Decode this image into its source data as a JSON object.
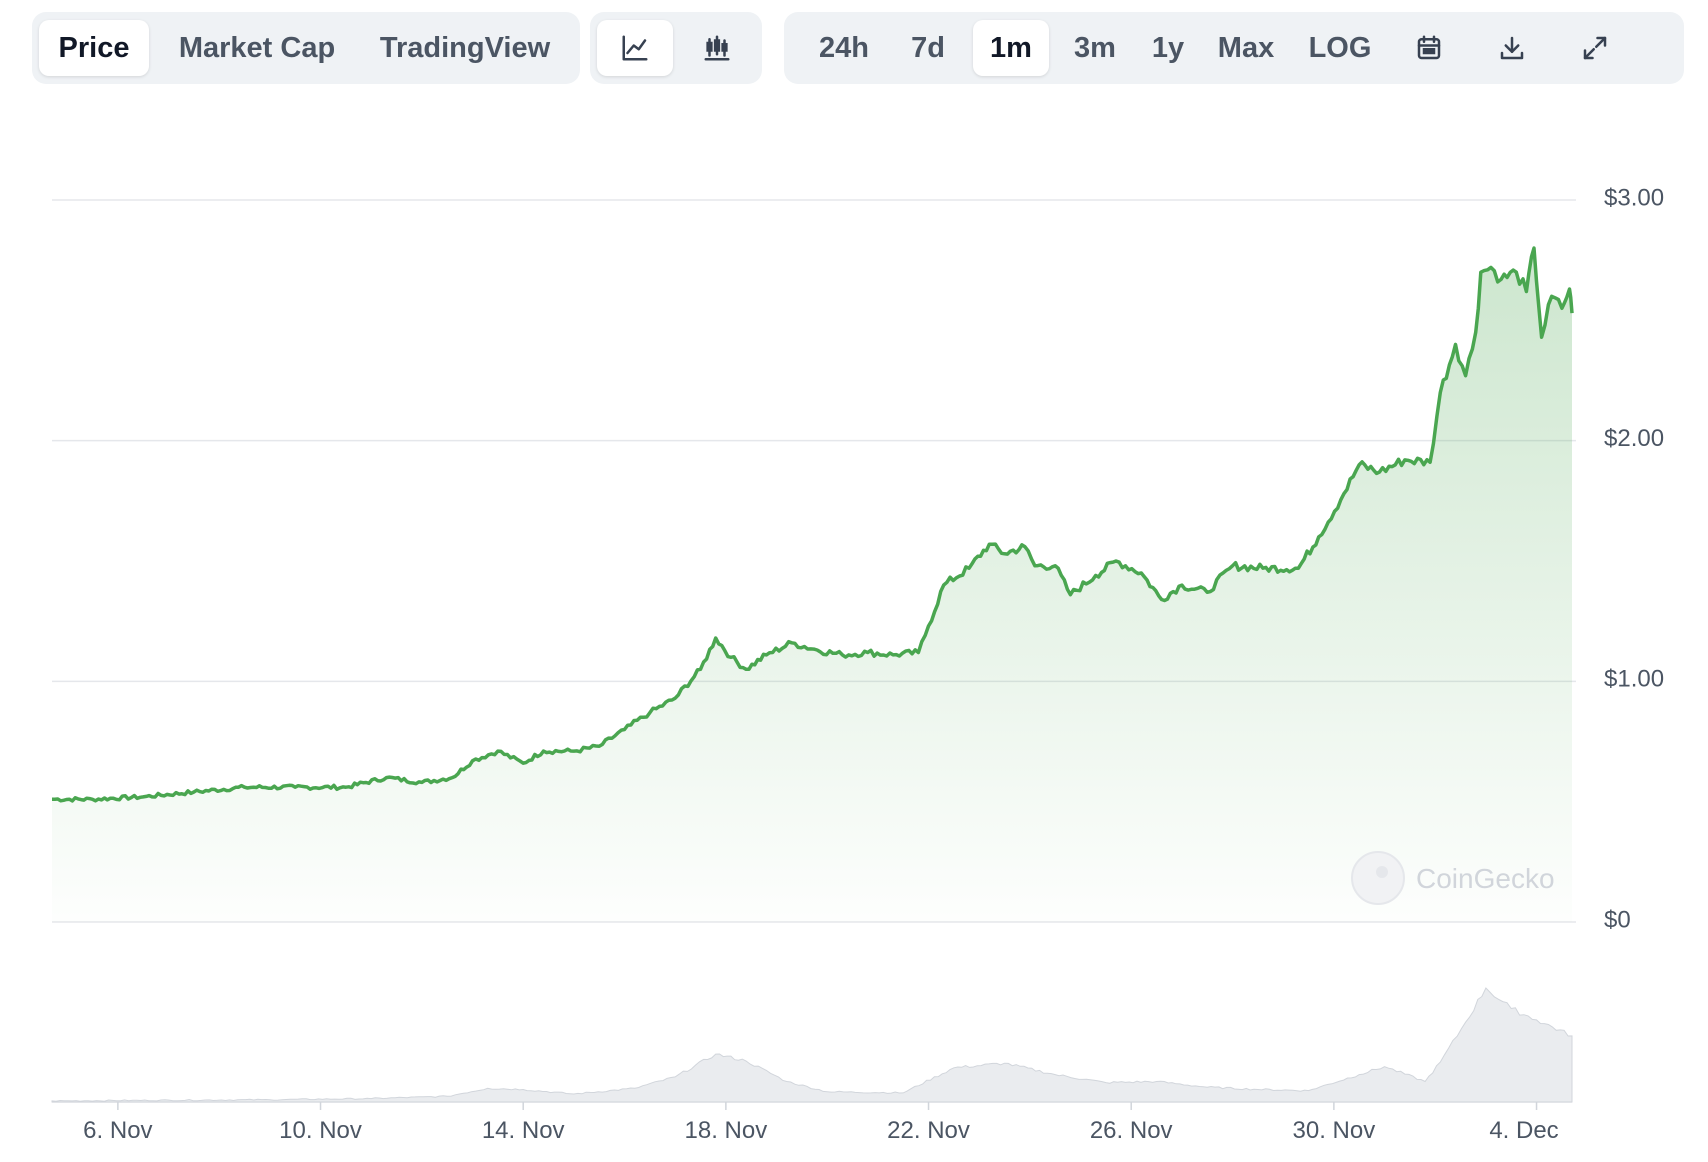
{
  "tabs": [
    {
      "label": "Price",
      "active": true
    },
    {
      "label": "Market Cap",
      "active": false
    },
    {
      "label": "TradingView",
      "active": false
    }
  ],
  "chart_types": [
    {
      "icon": "line-chart-icon",
      "active": true
    },
    {
      "icon": "candlestick-chart-icon",
      "active": false
    }
  ],
  "ranges": [
    {
      "label": "24h",
      "active": false
    },
    {
      "label": "7d",
      "active": false
    },
    {
      "label": "1m",
      "active": true
    },
    {
      "label": "3m",
      "active": false
    },
    {
      "label": "1y",
      "active": false
    },
    {
      "label": "Max",
      "active": false
    },
    {
      "label": "LOG",
      "active": false
    }
  ],
  "actions": [
    {
      "icon": "calendar-icon"
    },
    {
      "icon": "download-icon"
    },
    {
      "icon": "expand-icon"
    }
  ],
  "watermark": "CoinGecko",
  "colors": {
    "line": "#4aa650",
    "fill": "#4aa650",
    "volume": "#e5e7eb",
    "grid": "#e5e7eb"
  },
  "chart_data": {
    "type": "area",
    "y_ticks": [
      "$3.00",
      "$2.00",
      "$1.00",
      "$0"
    ],
    "y_tick_values": [
      3,
      2,
      1,
      0
    ],
    "x_ticks": [
      "6. Nov",
      "10. Nov",
      "14. Nov",
      "18. Nov",
      "22. Nov",
      "26. Nov",
      "30. Nov",
      "4. Dec"
    ],
    "x_tick_days": [
      6,
      10,
      14,
      18,
      22,
      26,
      30,
      34
    ],
    "x_range_days": [
      4.7,
      34.7
    ],
    "ylim": [
      0,
      3
    ],
    "price": [
      [
        4.7,
        0.51
      ],
      [
        5.5,
        0.51
      ],
      [
        6.5,
        0.52
      ],
      [
        7.5,
        0.54
      ],
      [
        8.5,
        0.56
      ],
      [
        9.5,
        0.56
      ],
      [
        10.5,
        0.56
      ],
      [
        11.3,
        0.6
      ],
      [
        12.0,
        0.58
      ],
      [
        12.6,
        0.6
      ],
      [
        13.0,
        0.67
      ],
      [
        13.5,
        0.71
      ],
      [
        14.0,
        0.66
      ],
      [
        14.4,
        0.71
      ],
      [
        15.0,
        0.71
      ],
      [
        15.5,
        0.73
      ],
      [
        16.0,
        0.8
      ],
      [
        16.5,
        0.87
      ],
      [
        17.0,
        0.93
      ],
      [
        17.5,
        1.05
      ],
      [
        17.8,
        1.18
      ],
      [
        18.1,
        1.1
      ],
      [
        18.4,
        1.05
      ],
      [
        18.8,
        1.11
      ],
      [
        19.3,
        1.16
      ],
      [
        19.8,
        1.13
      ],
      [
        20.3,
        1.11
      ],
      [
        20.8,
        1.12
      ],
      [
        21.3,
        1.11
      ],
      [
        21.8,
        1.12
      ],
      [
        22.0,
        1.23
      ],
      [
        22.3,
        1.4
      ],
      [
        22.8,
        1.47
      ],
      [
        23.2,
        1.57
      ],
      [
        23.5,
        1.53
      ],
      [
        23.9,
        1.56
      ],
      [
        24.1,
        1.48
      ],
      [
        24.5,
        1.48
      ],
      [
        24.8,
        1.36
      ],
      [
        25.3,
        1.44
      ],
      [
        25.7,
        1.5
      ],
      [
        26.2,
        1.45
      ],
      [
        26.6,
        1.34
      ],
      [
        27.0,
        1.4
      ],
      [
        27.5,
        1.37
      ],
      [
        28.0,
        1.48
      ],
      [
        28.6,
        1.47
      ],
      [
        29.3,
        1.47
      ],
      [
        29.7,
        1.6
      ],
      [
        30.2,
        1.78
      ],
      [
        30.5,
        1.9
      ],
      [
        30.9,
        1.87
      ],
      [
        31.4,
        1.92
      ],
      [
        31.9,
        1.91
      ],
      [
        32.1,
        2.2
      ],
      [
        32.4,
        2.4
      ],
      [
        32.6,
        2.27
      ],
      [
        32.8,
        2.45
      ],
      [
        32.9,
        2.7
      ],
      [
        33.1,
        2.72
      ],
      [
        33.3,
        2.67
      ],
      [
        33.6,
        2.7
      ],
      [
        33.8,
        2.62
      ],
      [
        33.95,
        2.8
      ],
      [
        34.1,
        2.43
      ],
      [
        34.3,
        2.6
      ],
      [
        34.5,
        2.55
      ],
      [
        34.65,
        2.63
      ],
      [
        34.7,
        2.53
      ]
    ],
    "volume": [
      [
        4.7,
        0.01
      ],
      [
        9.0,
        0.02
      ],
      [
        11.0,
        0.03
      ],
      [
        12.5,
        0.05
      ],
      [
        13.3,
        0.12
      ],
      [
        14.0,
        0.11
      ],
      [
        15.0,
        0.07
      ],
      [
        16.2,
        0.12
      ],
      [
        17.0,
        0.22
      ],
      [
        17.8,
        0.42
      ],
      [
        18.4,
        0.36
      ],
      [
        19.2,
        0.18
      ],
      [
        20.0,
        0.09
      ],
      [
        21.5,
        0.08
      ],
      [
        22.5,
        0.3
      ],
      [
        23.5,
        0.34
      ],
      [
        24.5,
        0.24
      ],
      [
        25.5,
        0.17
      ],
      [
        26.5,
        0.18
      ],
      [
        27.5,
        0.13
      ],
      [
        28.5,
        0.11
      ],
      [
        29.5,
        0.1
      ],
      [
        30.5,
        0.24
      ],
      [
        31.0,
        0.31
      ],
      [
        31.8,
        0.18
      ],
      [
        32.1,
        0.35
      ],
      [
        32.6,
        0.7
      ],
      [
        33.0,
        1.0
      ],
      [
        33.5,
        0.82
      ],
      [
        34.0,
        0.72
      ],
      [
        34.7,
        0.58
      ]
    ]
  }
}
